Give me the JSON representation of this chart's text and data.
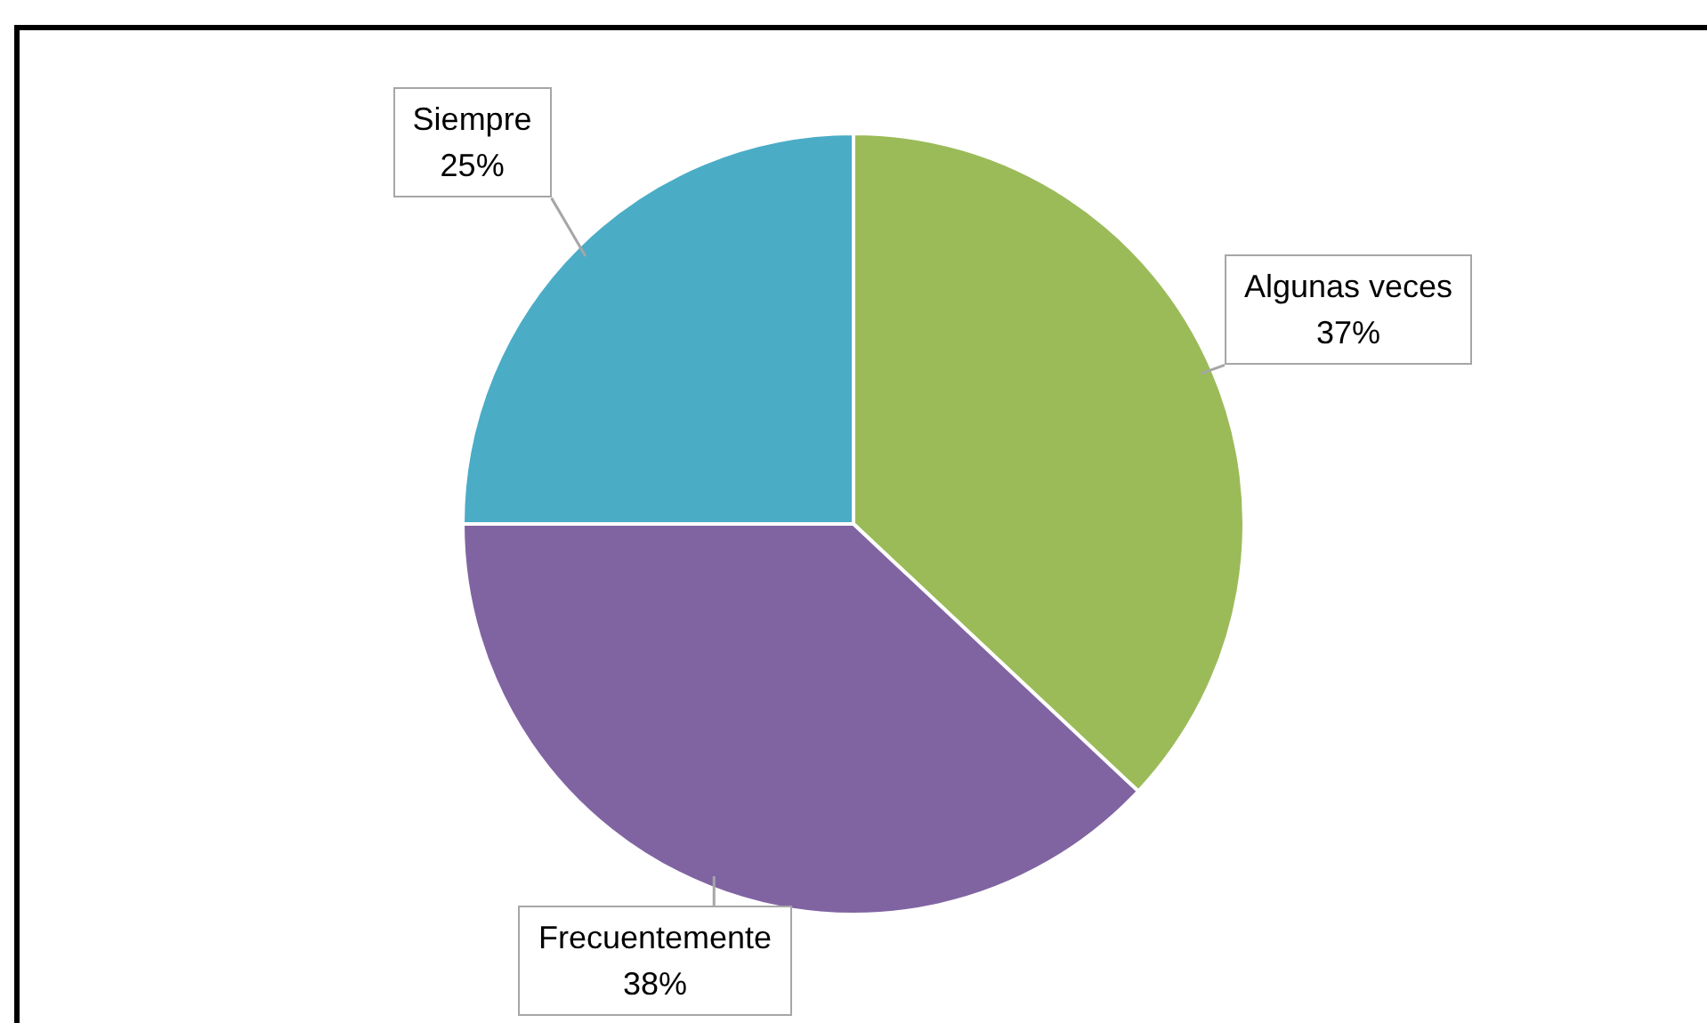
{
  "chart_data": {
    "type": "pie",
    "categories": [
      "Algunas veces",
      "Frecuentemente",
      "Siempre"
    ],
    "values": [
      37,
      38,
      25
    ],
    "colors": [
      "#9bbb59",
      "#8064a2",
      "#4bacc6"
    ],
    "value_labels": [
      "37%",
      "38%",
      "25%"
    ],
    "legend": false
  }
}
